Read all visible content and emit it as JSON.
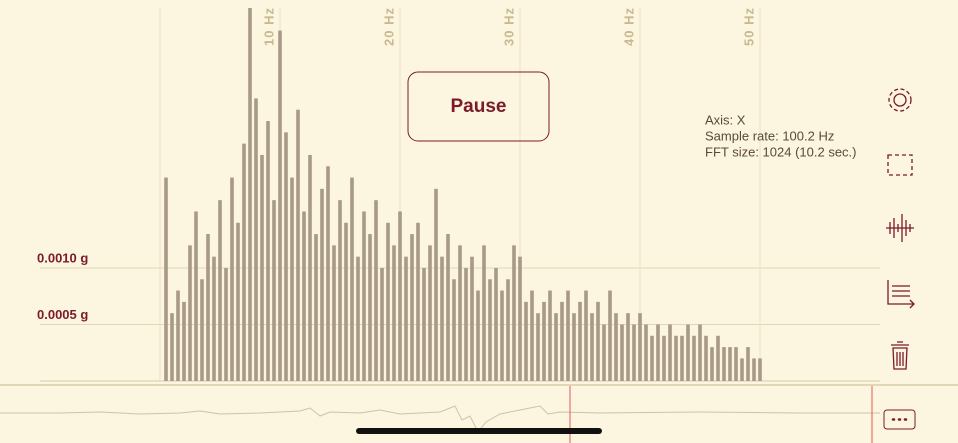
{
  "chart_data": {
    "type": "bar",
    "x": [
      0.5,
      1.0,
      1.5,
      2.0,
      2.5,
      3.0,
      3.5,
      4.0,
      4.5,
      5.0,
      5.5,
      6.0,
      6.5,
      7.0,
      7.5,
      8.0,
      8.5,
      9.0,
      9.5,
      10.0,
      10.5,
      11.0,
      11.5,
      12.0,
      12.5,
      13.0,
      13.5,
      14.0,
      14.5,
      15.0,
      15.5,
      16.0,
      16.5,
      17.0,
      17.5,
      18.0,
      18.5,
      19.0,
      19.5,
      20.0,
      20.5,
      21.0,
      21.5,
      22.0,
      22.5,
      23.0,
      23.5,
      24.0,
      24.5,
      25.0,
      25.5,
      26.0,
      26.5,
      27.0,
      27.5,
      28.0,
      28.5,
      29.0,
      29.5,
      30.0,
      30.5,
      31.0,
      31.5,
      32.0,
      32.5,
      33.0,
      33.5,
      34.0,
      34.5,
      35.0,
      35.5,
      36.0,
      36.5,
      37.0,
      37.5,
      38.0,
      38.5,
      39.0,
      39.5,
      40.0,
      40.5,
      41.0,
      41.5,
      42.0,
      42.5,
      43.0,
      43.5,
      44.0,
      44.5,
      45.0,
      45.5,
      46.0,
      46.5,
      47.0,
      47.5,
      48.0,
      48.5,
      49.0,
      49.5,
      50.0
    ],
    "values": [
      0.0018,
      0.0006,
      0.0008,
      0.0007,
      0.0012,
      0.0015,
      0.0009,
      0.0013,
      0.0011,
      0.0016,
      0.001,
      0.0018,
      0.0014,
      0.0021,
      0.0033,
      0.0025,
      0.002,
      0.0023,
      0.0016,
      0.0031,
      0.0022,
      0.0018,
      0.0024,
      0.0015,
      0.002,
      0.0013,
      0.0017,
      0.0019,
      0.0012,
      0.0016,
      0.0014,
      0.0018,
      0.0011,
      0.0015,
      0.0013,
      0.0016,
      0.001,
      0.0014,
      0.0012,
      0.0015,
      0.0011,
      0.0013,
      0.0014,
      0.001,
      0.0012,
      0.0017,
      0.0011,
      0.0013,
      0.0009,
      0.0012,
      0.001,
      0.0011,
      0.0008,
      0.0012,
      0.0009,
      0.001,
      0.0008,
      0.0009,
      0.0012,
      0.0011,
      0.0007,
      0.0008,
      0.0006,
      0.0007,
      0.0008,
      0.0006,
      0.0007,
      0.0008,
      0.0006,
      0.0007,
      0.0008,
      0.0006,
      0.0007,
      0.0005,
      0.0008,
      0.0006,
      0.0005,
      0.0006,
      0.0005,
      0.0006,
      0.0005,
      0.0004,
      0.0005,
      0.0004,
      0.0005,
      0.0004,
      0.0004,
      0.0005,
      0.0004,
      0.0005,
      0.0004,
      0.0003,
      0.0004,
      0.0003,
      0.0003,
      0.0003,
      0.0002,
      0.0003,
      0.0002,
      0.0002
    ],
    "color": "#a89a86",
    "xlim": [
      0,
      50
    ],
    "ylim": [
      0,
      0.0033
    ],
    "xticks": [
      {
        "value": 10,
        "label": "10 Hz"
      },
      {
        "value": 20,
        "label": "20 Hz"
      },
      {
        "value": 30,
        "label": "30 Hz"
      },
      {
        "value": 40,
        "label": "40 Hz"
      },
      {
        "value": 50,
        "label": "50 Hz"
      }
    ],
    "yticks": [
      {
        "value": 0.001,
        "label": "0.0010 g"
      },
      {
        "value": 0.0005,
        "label": "0.0005 g"
      }
    ],
    "grid": true
  },
  "pause_button": "Pause",
  "info": [
    "Axis: X",
    "Sample rate: 100.2 Hz",
    "FFT size: 1024 (10.2 sec.)"
  ]
}
